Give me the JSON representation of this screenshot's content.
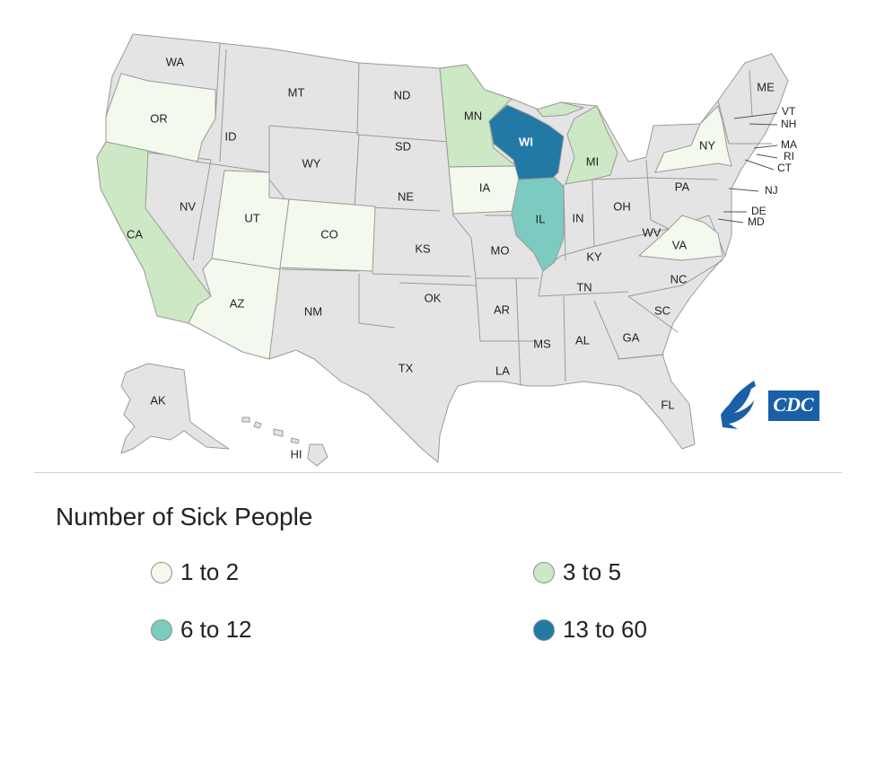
{
  "colors": {
    "none": "#e4e4e4",
    "bin_1_2": "#f3f9ec",
    "bin_3_5": "#cce8c4",
    "bin_6_12": "#7ccbc0",
    "bin_13_60": "#2379a6",
    "border": "#9a9a9a",
    "cdc_blue": "#1a5fa8"
  },
  "map": {
    "state_labels": [
      "WA",
      "OR",
      "CA",
      "ID",
      "NV",
      "MT",
      "WY",
      "UT",
      "CO",
      "AZ",
      "NM",
      "ND",
      "SD",
      "NE",
      "KS",
      "OK",
      "TX",
      "MN",
      "IA",
      "MO",
      "AR",
      "LA",
      "WI",
      "IL",
      "MI",
      "IN",
      "KY",
      "TN",
      "MS",
      "AL",
      "GA",
      "FL",
      "SC",
      "NC",
      "VA",
      "WV",
      "OH",
      "PA",
      "NY",
      "NJ",
      "DE",
      "MD",
      "CT",
      "RI",
      "MA",
      "VT",
      "NH",
      "ME",
      "AK",
      "HI"
    ],
    "state_bins": {
      "OR": "1 to 2",
      "UT": "1 to 2",
      "AZ": "1 to 2",
      "CO": "1 to 2",
      "IA": "1 to 2",
      "NY": "1 to 2",
      "VA": "1 to 2",
      "CA": "3 to 5",
      "MN": "3 to 5",
      "MI": "3 to 5",
      "IL": "6 to 12",
      "WI": "13 to 60"
    },
    "logo_text": "CDC",
    "logo_icon": "hhs-eagle-icon"
  },
  "legend": {
    "title": "Number of Sick People",
    "items": [
      {
        "label": "1 to 2",
        "color": "#f3f9ec"
      },
      {
        "label": "3 to 5",
        "color": "#cce8c4"
      },
      {
        "label": "6 to 12",
        "color": "#7ccbc0"
      },
      {
        "label": "13 to 60",
        "color": "#2379a6"
      }
    ]
  }
}
